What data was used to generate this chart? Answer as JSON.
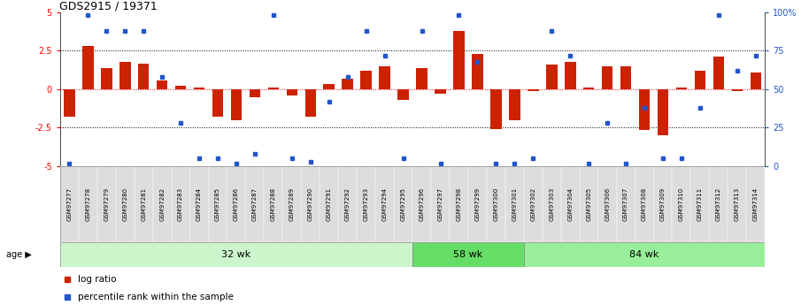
{
  "title": "GDS2915 / 19371",
  "samples": [
    "GSM97277",
    "GSM97278",
    "GSM97279",
    "GSM97280",
    "GSM97281",
    "GSM97282",
    "GSM97283",
    "GSM97284",
    "GSM97285",
    "GSM97286",
    "GSM97287",
    "GSM97288",
    "GSM97289",
    "GSM97290",
    "GSM97291",
    "GSM97292",
    "GSM97293",
    "GSM97294",
    "GSM97295",
    "GSM97296",
    "GSM97297",
    "GSM97298",
    "GSM97299",
    "GSM97300",
    "GSM97301",
    "GSM97302",
    "GSM97303",
    "GSM97304",
    "GSM97305",
    "GSM97306",
    "GSM97307",
    "GSM97308",
    "GSM97309",
    "GSM97310",
    "GSM97311",
    "GSM97312",
    "GSM97313",
    "GSM97314"
  ],
  "log_ratio": [
    -1.8,
    2.8,
    1.4,
    1.8,
    1.65,
    0.55,
    0.25,
    0.1,
    -1.8,
    -2.0,
    -0.5,
    0.1,
    -0.4,
    -1.8,
    0.35,
    0.7,
    1.2,
    1.5,
    -0.7,
    1.4,
    -0.3,
    3.8,
    2.3,
    -2.6,
    -2.0,
    -0.1,
    1.6,
    1.8,
    0.1,
    1.5,
    1.5,
    -2.65,
    -3.0,
    0.1,
    1.2,
    2.1,
    -0.1,
    1.1
  ],
  "percentile": [
    2,
    98,
    88,
    88,
    88,
    58,
    28,
    5,
    5,
    2,
    8,
    98,
    5,
    3,
    42,
    58,
    88,
    72,
    5,
    88,
    2,
    98,
    68,
    2,
    2,
    5,
    88,
    72,
    2,
    28,
    2,
    38,
    5,
    5,
    38,
    98,
    62,
    72
  ],
  "groups": [
    {
      "label": "32 wk",
      "start": 0,
      "end": 19,
      "color": "#ccf5cc"
    },
    {
      "label": "58 wk",
      "start": 19,
      "end": 25,
      "color": "#66dd66"
    },
    {
      "label": "84 wk",
      "start": 25,
      "end": 37,
      "color": "#99ee99"
    }
  ],
  "ylim": [
    -5,
    5
  ],
  "yticks_left": [
    -5,
    -2.5,
    0,
    2.5,
    5
  ],
  "right_tick_labels": [
    "0",
    "25",
    "50",
    "75",
    "100%"
  ],
  "hlines": [
    2.5,
    0,
    -2.5
  ],
  "bar_color": "#cc2200",
  "dot_color": "#2255cc",
  "age_label": "age",
  "legend_log": "log ratio",
  "legend_pct": "percentile rank within the sample",
  "label_box_color": "#dddddd"
}
